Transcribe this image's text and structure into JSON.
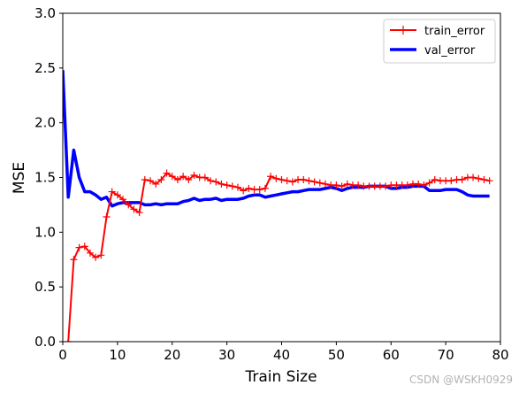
{
  "chart_data": {
    "type": "line",
    "title": "",
    "xlabel": "Train Size",
    "ylabel": "MSE",
    "xlim": [
      0,
      80
    ],
    "ylim": [
      0,
      3.0
    ],
    "xticks": [
      "0",
      "10",
      "20",
      "30",
      "40",
      "50",
      "60",
      "70",
      "80"
    ],
    "yticks": [
      "0.0",
      "0.5",
      "1.0",
      "1.5",
      "2.0",
      "2.5",
      "3.0"
    ],
    "grid": false,
    "legend_position": "top-right",
    "series": [
      {
        "name": "train_error",
        "color": "#ff0000",
        "marker": "+",
        "x": [
          1,
          2,
          3,
          4,
          5,
          6,
          7,
          8,
          9,
          10,
          11,
          12,
          13,
          14,
          15,
          16,
          17,
          18,
          19,
          20,
          21,
          22,
          23,
          24,
          25,
          26,
          27,
          28,
          29,
          30,
          31,
          32,
          33,
          34,
          35,
          36,
          37,
          38,
          39,
          40,
          41,
          42,
          43,
          44,
          45,
          46,
          47,
          48,
          49,
          50,
          51,
          52,
          53,
          54,
          55,
          56,
          57,
          58,
          59,
          60,
          61,
          62,
          63,
          64,
          65,
          66,
          67,
          68,
          69,
          70,
          71,
          72,
          73,
          74,
          75,
          76,
          77,
          78
        ],
        "y": [
          0.0,
          0.75,
          0.86,
          0.87,
          0.81,
          0.77,
          0.79,
          1.14,
          1.37,
          1.34,
          1.3,
          1.25,
          1.21,
          1.18,
          1.48,
          1.47,
          1.44,
          1.48,
          1.54,
          1.51,
          1.48,
          1.51,
          1.48,
          1.52,
          1.5,
          1.5,
          1.47,
          1.46,
          1.44,
          1.43,
          1.42,
          1.41,
          1.38,
          1.4,
          1.39,
          1.39,
          1.4,
          1.51,
          1.49,
          1.48,
          1.47,
          1.46,
          1.48,
          1.48,
          1.47,
          1.46,
          1.45,
          1.44,
          1.43,
          1.43,
          1.42,
          1.44,
          1.43,
          1.43,
          1.42,
          1.42,
          1.42,
          1.42,
          1.42,
          1.43,
          1.43,
          1.43,
          1.43,
          1.44,
          1.44,
          1.43,
          1.45,
          1.48,
          1.47,
          1.47,
          1.47,
          1.48,
          1.48,
          1.5,
          1.5,
          1.49,
          1.48,
          1.47
        ]
      },
      {
        "name": "val_error",
        "color": "#0000ff",
        "marker": "",
        "x": [
          0,
          1,
          2,
          3,
          4,
          5,
          6,
          7,
          8,
          9,
          10,
          11,
          12,
          13,
          14,
          15,
          16,
          17,
          18,
          19,
          20,
          21,
          22,
          23,
          24,
          25,
          26,
          27,
          28,
          29,
          30,
          31,
          32,
          33,
          34,
          35,
          36,
          37,
          38,
          39,
          40,
          41,
          42,
          43,
          44,
          45,
          46,
          47,
          48,
          49,
          50,
          51,
          52,
          53,
          54,
          55,
          56,
          57,
          58,
          59,
          60,
          61,
          62,
          63,
          64,
          65,
          66,
          67,
          68,
          69,
          70,
          71,
          72,
          73,
          74,
          75,
          76,
          77,
          78
        ],
        "y": [
          2.48,
          1.32,
          1.75,
          1.5,
          1.37,
          1.37,
          1.34,
          1.3,
          1.32,
          1.24,
          1.26,
          1.27,
          1.27,
          1.27,
          1.27,
          1.25,
          1.25,
          1.26,
          1.25,
          1.26,
          1.26,
          1.26,
          1.28,
          1.29,
          1.31,
          1.29,
          1.3,
          1.3,
          1.31,
          1.29,
          1.3,
          1.3,
          1.3,
          1.31,
          1.33,
          1.34,
          1.34,
          1.32,
          1.33,
          1.34,
          1.35,
          1.36,
          1.37,
          1.37,
          1.38,
          1.39,
          1.39,
          1.39,
          1.4,
          1.41,
          1.4,
          1.38,
          1.4,
          1.41,
          1.41,
          1.41,
          1.42,
          1.42,
          1.42,
          1.42,
          1.4,
          1.4,
          1.41,
          1.41,
          1.42,
          1.42,
          1.42,
          1.38,
          1.38,
          1.38,
          1.39,
          1.39,
          1.39,
          1.37,
          1.34,
          1.33,
          1.33,
          1.33,
          1.33
        ]
      }
    ]
  },
  "watermark": "CSDN @WSKH0929"
}
